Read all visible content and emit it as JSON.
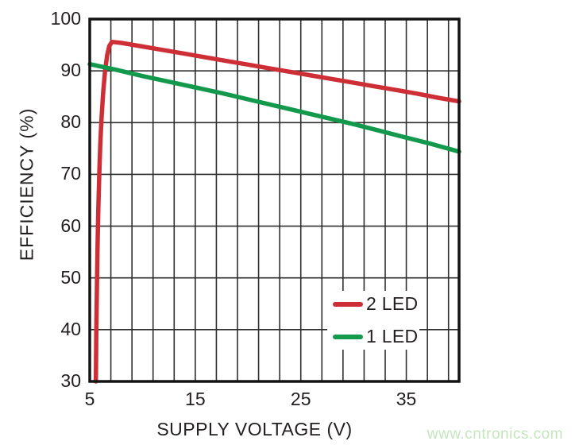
{
  "figure": {
    "background": "#ffffff",
    "watermark": {
      "text": "www.cntronics.com",
      "color": "#c3e6bd"
    }
  },
  "chart_data": {
    "type": "line",
    "title": "",
    "xlabel": "SUPPLY VOLTAGE (V)",
    "ylabel": "EFFICIENCY (%)",
    "xlim": [
      5,
      40
    ],
    "ylim": [
      30,
      100
    ],
    "grid": true,
    "x_gridline_step": 2,
    "y_gridline_step": 10,
    "x_tick_values": [
      5,
      15,
      25,
      35
    ],
    "x_tick_labels": [
      "5",
      "15",
      "25",
      "35"
    ],
    "y_tick_values": [
      100,
      90,
      80,
      70,
      60,
      50,
      40,
      30
    ],
    "y_tick_labels": [
      "100",
      "90",
      "80",
      "70",
      "60",
      "50",
      "40",
      "30"
    ],
    "axis_color": "#141414",
    "grid_color": "#2e2e2e",
    "legend_position": "inside-lower-right",
    "series": [
      {
        "name": "2 LED",
        "color": "#ce2f36",
        "points": [
          [
            5.58,
            30
          ],
          [
            5.62,
            39
          ],
          [
            5.68,
            48
          ],
          [
            5.74,
            56
          ],
          [
            5.82,
            64
          ],
          [
            5.9,
            70
          ],
          [
            6.0,
            76
          ],
          [
            6.12,
            81
          ],
          [
            6.28,
            86
          ],
          [
            6.45,
            90
          ],
          [
            6.65,
            93
          ],
          [
            6.85,
            94.8
          ],
          [
            7.1,
            95.6
          ],
          [
            8,
            95.4
          ],
          [
            10,
            94.7
          ],
          [
            12,
            94.0
          ],
          [
            14,
            93.3
          ],
          [
            16,
            92.6
          ],
          [
            18,
            91.9
          ],
          [
            20,
            91.2
          ],
          [
            22,
            90.5
          ],
          [
            24,
            89.8
          ],
          [
            26,
            89.1
          ],
          [
            28,
            88.4
          ],
          [
            30,
            87.7
          ],
          [
            32,
            87.0
          ],
          [
            34,
            86.3
          ],
          [
            36,
            85.6
          ],
          [
            38,
            84.8
          ],
          [
            40,
            84.1
          ]
        ]
      },
      {
        "name": "1 LED",
        "color": "#12994c",
        "points": [
          [
            5,
            91.3
          ],
          [
            7.5,
            90.2
          ],
          [
            10,
            89.0
          ],
          [
            12.5,
            87.9
          ],
          [
            15,
            86.8
          ],
          [
            17.5,
            85.7
          ],
          [
            20,
            84.5
          ],
          [
            22.5,
            83.3
          ],
          [
            25,
            82.1
          ],
          [
            27.5,
            80.9
          ],
          [
            30,
            79.7
          ],
          [
            32.5,
            78.4
          ],
          [
            35,
            77.1
          ],
          [
            37.5,
            75.8
          ],
          [
            40,
            74.4
          ]
        ]
      }
    ]
  }
}
